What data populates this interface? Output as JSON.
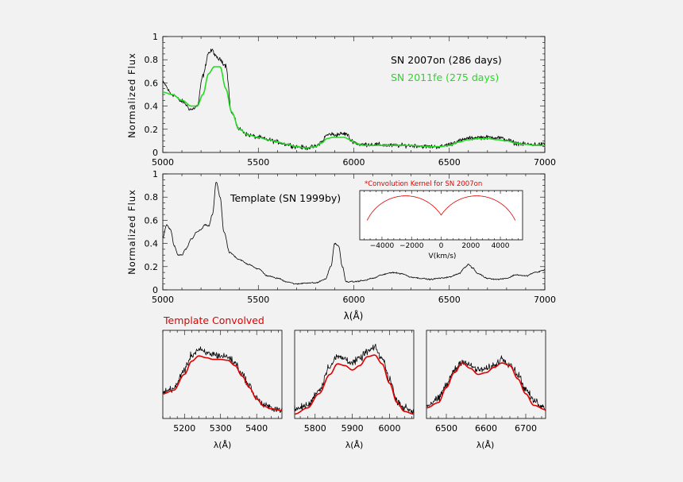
{
  "colors": {
    "background": "#f2f2f2",
    "observed": "#000000",
    "sn2011fe": "#22dd22",
    "convolved": "#e00000",
    "kernel": "#e00000"
  },
  "chart_data": [
    {
      "id": "top",
      "type": "line",
      "xlim": [
        5000,
        7000
      ],
      "ylim": [
        0,
        1
      ],
      "xticks": [
        5000,
        5500,
        6000,
        6500,
        7000
      ],
      "yticks": [
        0,
        0.2,
        0.4,
        0.6,
        0.8,
        1
      ],
      "xlabel": "",
      "ylabel": "Normalized  Flux",
      "legend": [
        "SN 2007on (286 days)",
        "SN 2011fe (275 days)"
      ],
      "series": [
        {
          "name": "SN 2007on (286 days)",
          "color": "#000000",
          "noisy": true,
          "x": [
            5000,
            5050,
            5100,
            5150,
            5180,
            5210,
            5240,
            5260,
            5280,
            5300,
            5330,
            5360,
            5400,
            5450,
            5500,
            5550,
            5600,
            5650,
            5700,
            5750,
            5800,
            5830,
            5860,
            5880,
            5900,
            5930,
            5960,
            5990,
            6030,
            6100,
            6200,
            6300,
            6400,
            6450,
            6500,
            6550,
            6600,
            6650,
            6700,
            6750,
            6800,
            6850,
            6900,
            6950,
            7000
          ],
          "y": [
            0.6,
            0.5,
            0.44,
            0.37,
            0.4,
            0.66,
            0.86,
            0.88,
            0.82,
            0.8,
            0.75,
            0.34,
            0.2,
            0.15,
            0.13,
            0.11,
            0.09,
            0.07,
            0.05,
            0.04,
            0.05,
            0.09,
            0.15,
            0.16,
            0.15,
            0.16,
            0.16,
            0.1,
            0.07,
            0.07,
            0.06,
            0.06,
            0.05,
            0.05,
            0.07,
            0.1,
            0.12,
            0.13,
            0.13,
            0.13,
            0.11,
            0.08,
            0.07,
            0.07,
            0.07
          ]
        },
        {
          "name": "SN 2011fe (275 days)",
          "color": "#22dd22",
          "noisy": false,
          "x": [
            5000,
            5050,
            5100,
            5150,
            5180,
            5210,
            5240,
            5270,
            5300,
            5330,
            5360,
            5400,
            5450,
            5500,
            5550,
            5600,
            5650,
            5700,
            5750,
            5800,
            5830,
            5860,
            5890,
            5920,
            5950,
            5980,
            6010,
            6050,
            6100,
            6200,
            6300,
            6400,
            6450,
            6500,
            6550,
            6600,
            6650,
            6700,
            6750,
            6800,
            6850,
            6900,
            6950,
            7000
          ],
          "y": [
            0.52,
            0.5,
            0.45,
            0.4,
            0.4,
            0.5,
            0.68,
            0.74,
            0.74,
            0.55,
            0.35,
            0.2,
            0.15,
            0.13,
            0.11,
            0.09,
            0.07,
            0.05,
            0.04,
            0.05,
            0.08,
            0.12,
            0.13,
            0.13,
            0.13,
            0.11,
            0.08,
            0.06,
            0.06,
            0.06,
            0.06,
            0.05,
            0.05,
            0.06,
            0.09,
            0.11,
            0.12,
            0.12,
            0.11,
            0.1,
            0.08,
            0.07,
            0.06,
            0.06
          ]
        }
      ]
    },
    {
      "id": "middle",
      "type": "line",
      "xlim": [
        5000,
        7000
      ],
      "ylim": [
        0,
        1
      ],
      "xticks": [
        5000,
        5500,
        6000,
        6500,
        7000
      ],
      "yticks": [
        0,
        0.2,
        0.4,
        0.6,
        0.8,
        1
      ],
      "xlabel": "λ(Å)",
      "ylabel": "Normalized  Flux",
      "annotation": "Template (SN 1999by)",
      "series": [
        {
          "name": "Template (SN 1999by)",
          "color": "#000000",
          "noisy": true,
          "x": [
            5000,
            5020,
            5040,
            5060,
            5080,
            5100,
            5120,
            5150,
            5180,
            5200,
            5220,
            5240,
            5260,
            5280,
            5300,
            5320,
            5350,
            5400,
            5450,
            5500,
            5550,
            5600,
            5650,
            5700,
            5750,
            5800,
            5850,
            5880,
            5900,
            5920,
            5940,
            5960,
            6000,
            6050,
            6100,
            6150,
            6200,
            6250,
            6300,
            6350,
            6400,
            6450,
            6500,
            6550,
            6580,
            6600,
            6620,
            6650,
            6700,
            6750,
            6800,
            6850,
            6900,
            6950,
            7000
          ],
          "y": [
            0.45,
            0.56,
            0.52,
            0.38,
            0.3,
            0.3,
            0.35,
            0.44,
            0.5,
            0.52,
            0.56,
            0.55,
            0.65,
            0.93,
            0.8,
            0.5,
            0.32,
            0.26,
            0.22,
            0.18,
            0.12,
            0.1,
            0.07,
            0.05,
            0.06,
            0.06,
            0.09,
            0.2,
            0.4,
            0.38,
            0.2,
            0.07,
            0.07,
            0.08,
            0.1,
            0.13,
            0.15,
            0.14,
            0.11,
            0.1,
            0.09,
            0.1,
            0.11,
            0.14,
            0.19,
            0.22,
            0.19,
            0.14,
            0.1,
            0.09,
            0.1,
            0.13,
            0.12,
            0.15,
            0.17
          ]
        }
      ]
    },
    {
      "id": "kernel-inset",
      "type": "line",
      "title": "*Convolution Kernel for SN 2007on",
      "xlim": [
        -5500,
        5500
      ],
      "ylim": [
        0,
        1.12
      ],
      "xticks": [
        -4000,
        -2000,
        0,
        2000,
        4000
      ],
      "xlabel": "V(km/s)",
      "series": [
        {
          "name": "kernel",
          "color": "#e00000",
          "noisy": false,
          "smooth_fn": "kernel"
        }
      ]
    },
    {
      "id": "zoom-1",
      "type": "line",
      "title": "Template Convolved",
      "xlim": [
        5140,
        5470
      ],
      "ylim": [
        0,
        1
      ],
      "xticks": [
        5200,
        5300,
        5400
      ],
      "xlabel": "λ(Å)",
      "series": [
        {
          "name": "observed",
          "color": "#000000",
          "noisy": true,
          "x": [
            5140,
            5170,
            5200,
            5220,
            5240,
            5260,
            5280,
            5300,
            5320,
            5340,
            5360,
            5380,
            5400,
            5420,
            5440,
            5470
          ],
          "y": [
            0.3,
            0.34,
            0.55,
            0.72,
            0.78,
            0.74,
            0.73,
            0.71,
            0.7,
            0.63,
            0.5,
            0.37,
            0.23,
            0.15,
            0.12,
            0.1
          ]
        },
        {
          "name": "Template Convolved",
          "color": "#e00000",
          "noisy": false,
          "x": [
            5140,
            5170,
            5200,
            5220,
            5240,
            5260,
            5280,
            5300,
            5320,
            5340,
            5360,
            5380,
            5400,
            5420,
            5440,
            5470
          ],
          "y": [
            0.28,
            0.32,
            0.5,
            0.65,
            0.71,
            0.69,
            0.67,
            0.67,
            0.66,
            0.6,
            0.48,
            0.35,
            0.22,
            0.14,
            0.11,
            0.09
          ]
        }
      ]
    },
    {
      "id": "zoom-2",
      "type": "line",
      "xlim": [
        5745,
        6065
      ],
      "ylim": [
        0,
        1
      ],
      "xticks": [
        5800,
        5900,
        6000
      ],
      "xlabel": "λ(Å)",
      "series": [
        {
          "name": "observed",
          "color": "#000000",
          "noisy": true,
          "x": [
            5745,
            5780,
            5810,
            5840,
            5860,
            5880,
            5900,
            5920,
            5940,
            5960,
            5980,
            6000,
            6020,
            6040,
            6065
          ],
          "y": [
            0.1,
            0.15,
            0.32,
            0.6,
            0.7,
            0.68,
            0.63,
            0.68,
            0.76,
            0.8,
            0.68,
            0.45,
            0.2,
            0.12,
            0.08
          ]
        },
        {
          "name": "Template Convolved",
          "color": "#e00000",
          "noisy": false,
          "x": [
            5745,
            5780,
            5810,
            5840,
            5860,
            5880,
            5900,
            5920,
            5940,
            5960,
            5980,
            6000,
            6020,
            6040,
            6065
          ],
          "y": [
            0.05,
            0.12,
            0.28,
            0.5,
            0.62,
            0.6,
            0.55,
            0.6,
            0.7,
            0.72,
            0.62,
            0.4,
            0.18,
            0.08,
            0.05
          ]
        }
      ]
    },
    {
      "id": "zoom-3",
      "type": "line",
      "xlim": [
        6450,
        6750
      ],
      "ylim": [
        0,
        1
      ],
      "xticks": [
        6500,
        6600,
        6700
      ],
      "xlabel": "λ(Å)",
      "series": [
        {
          "name": "observed",
          "color": "#000000",
          "noisy": true,
          "x": [
            6450,
            6480,
            6500,
            6520,
            6540,
            6560,
            6580,
            6600,
            6620,
            6640,
            6660,
            6680,
            6700,
            6720,
            6750
          ],
          "y": [
            0.15,
            0.22,
            0.38,
            0.55,
            0.65,
            0.6,
            0.55,
            0.56,
            0.6,
            0.68,
            0.62,
            0.5,
            0.33,
            0.2,
            0.12
          ]
        },
        {
          "name": "Template Convolved",
          "color": "#e00000",
          "noisy": false,
          "x": [
            6450,
            6480,
            6500,
            6520,
            6540,
            6560,
            6580,
            6600,
            6620,
            6640,
            6660,
            6680,
            6700,
            6720,
            6750
          ],
          "y": [
            0.12,
            0.18,
            0.35,
            0.52,
            0.63,
            0.57,
            0.5,
            0.52,
            0.58,
            0.63,
            0.6,
            0.45,
            0.28,
            0.15,
            0.1
          ]
        }
      ]
    }
  ]
}
